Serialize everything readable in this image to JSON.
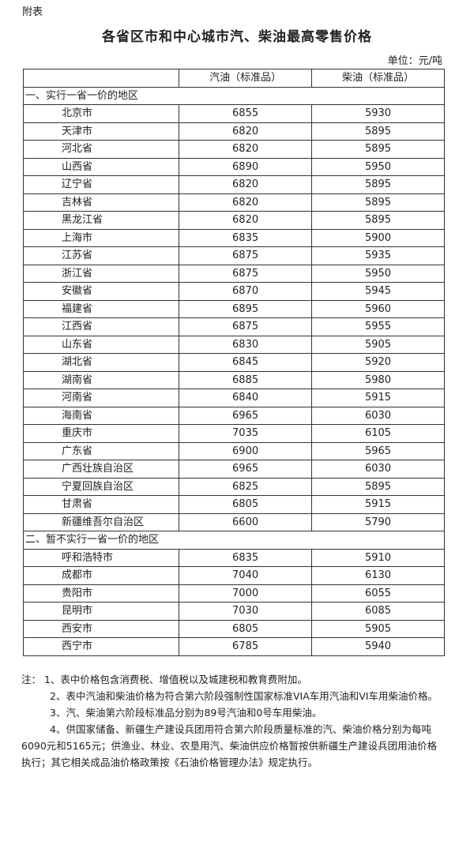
{
  "appendix_label": "附表",
  "title": "各省区市和中心城市汽、柴油最高零售价格",
  "unit": "单位：元/吨",
  "table": {
    "headers": [
      "",
      "汽油（标准品）",
      "柴油（标准品）"
    ],
    "sections": [
      {
        "label": "一、实行一省一价的地区",
        "rows": [
          [
            "北京市",
            "6855",
            "5930"
          ],
          [
            "天津市",
            "6820",
            "5895"
          ],
          [
            "河北省",
            "6820",
            "5895"
          ],
          [
            "山西省",
            "6890",
            "5950"
          ],
          [
            "辽宁省",
            "6820",
            "5895"
          ],
          [
            "吉林省",
            "6820",
            "5895"
          ],
          [
            "黑龙江省",
            "6820",
            "5895"
          ],
          [
            "上海市",
            "6835",
            "5900"
          ],
          [
            "江苏省",
            "6875",
            "5935"
          ],
          [
            "浙江省",
            "6875",
            "5950"
          ],
          [
            "安徽省",
            "6870",
            "5945"
          ],
          [
            "福建省",
            "6895",
            "5960"
          ],
          [
            "江西省",
            "6875",
            "5955"
          ],
          [
            "山东省",
            "6830",
            "5905"
          ],
          [
            "湖北省",
            "6845",
            "5920"
          ],
          [
            "湖南省",
            "6885",
            "5980"
          ],
          [
            "河南省",
            "6840",
            "5915"
          ],
          [
            "海南省",
            "6965",
            "6030"
          ],
          [
            "重庆市",
            "7035",
            "6105"
          ],
          [
            "广东省",
            "6900",
            "5965"
          ],
          [
            "广西壮族自治区",
            "6965",
            "6030"
          ],
          [
            "宁夏回族自治区",
            "6825",
            "5895"
          ],
          [
            "甘肃省",
            "6805",
            "5915"
          ],
          [
            "新疆维吾尔自治区",
            "6600",
            "5790"
          ]
        ]
      },
      {
        "label": "二、暂不实行一省一价的地区",
        "rows": [
          [
            "呼和浩特市",
            "6835",
            "5910"
          ],
          [
            "成都市",
            "7040",
            "6130"
          ],
          [
            "贵阳市",
            "7000",
            "6055"
          ],
          [
            "昆明市",
            "7030",
            "6085"
          ],
          [
            "西安市",
            "6805",
            "5905"
          ],
          [
            "西宁市",
            "6785",
            "5940"
          ]
        ]
      }
    ]
  },
  "notes": [
    "注：  1、表中价格包含消费税、增值税以及城建税和教育费附加。",
    "2、表中汽油和柴油价格为符合第六阶段强制性国家标准VIA车用汽油和VI车用柴油价格。",
    "3、汽、柴油第六阶段标准品分别为89号汽油和0号车用柴油。",
    "4、供国家储备、新疆生产建设兵团用符合第六阶段质量标准的汽、柴油价格分别为每吨6090元和5165元；供渔业、林业、农垦用汽、柴油供应价格暂按供新疆生产建设兵团用油价格执行；其它相关成品油价格政策按《石油价格管理办法》规定执行。"
  ]
}
